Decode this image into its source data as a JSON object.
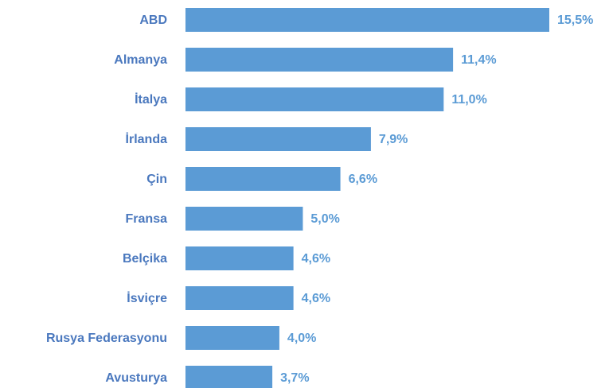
{
  "chart_data": {
    "type": "bar",
    "orientation": "horizontal",
    "categories": [
      "ABD",
      "Almanya",
      "İtalya",
      "İrlanda",
      "Çin",
      "Fransa",
      "Belçika",
      "İsviçre",
      "Rusya Federasyonu",
      "Avusturya"
    ],
    "values": [
      15.5,
      11.4,
      11.0,
      7.9,
      6.6,
      5.0,
      4.6,
      4.6,
      4.0,
      3.7
    ],
    "value_labels": [
      "15,5%",
      "11,4%",
      "11,0%",
      "7,9%",
      "6,6%",
      "5,0%",
      "4,6%",
      "4,6%",
      "4,0%",
      "3,7%"
    ],
    "color": "#5b9bd5"
  }
}
